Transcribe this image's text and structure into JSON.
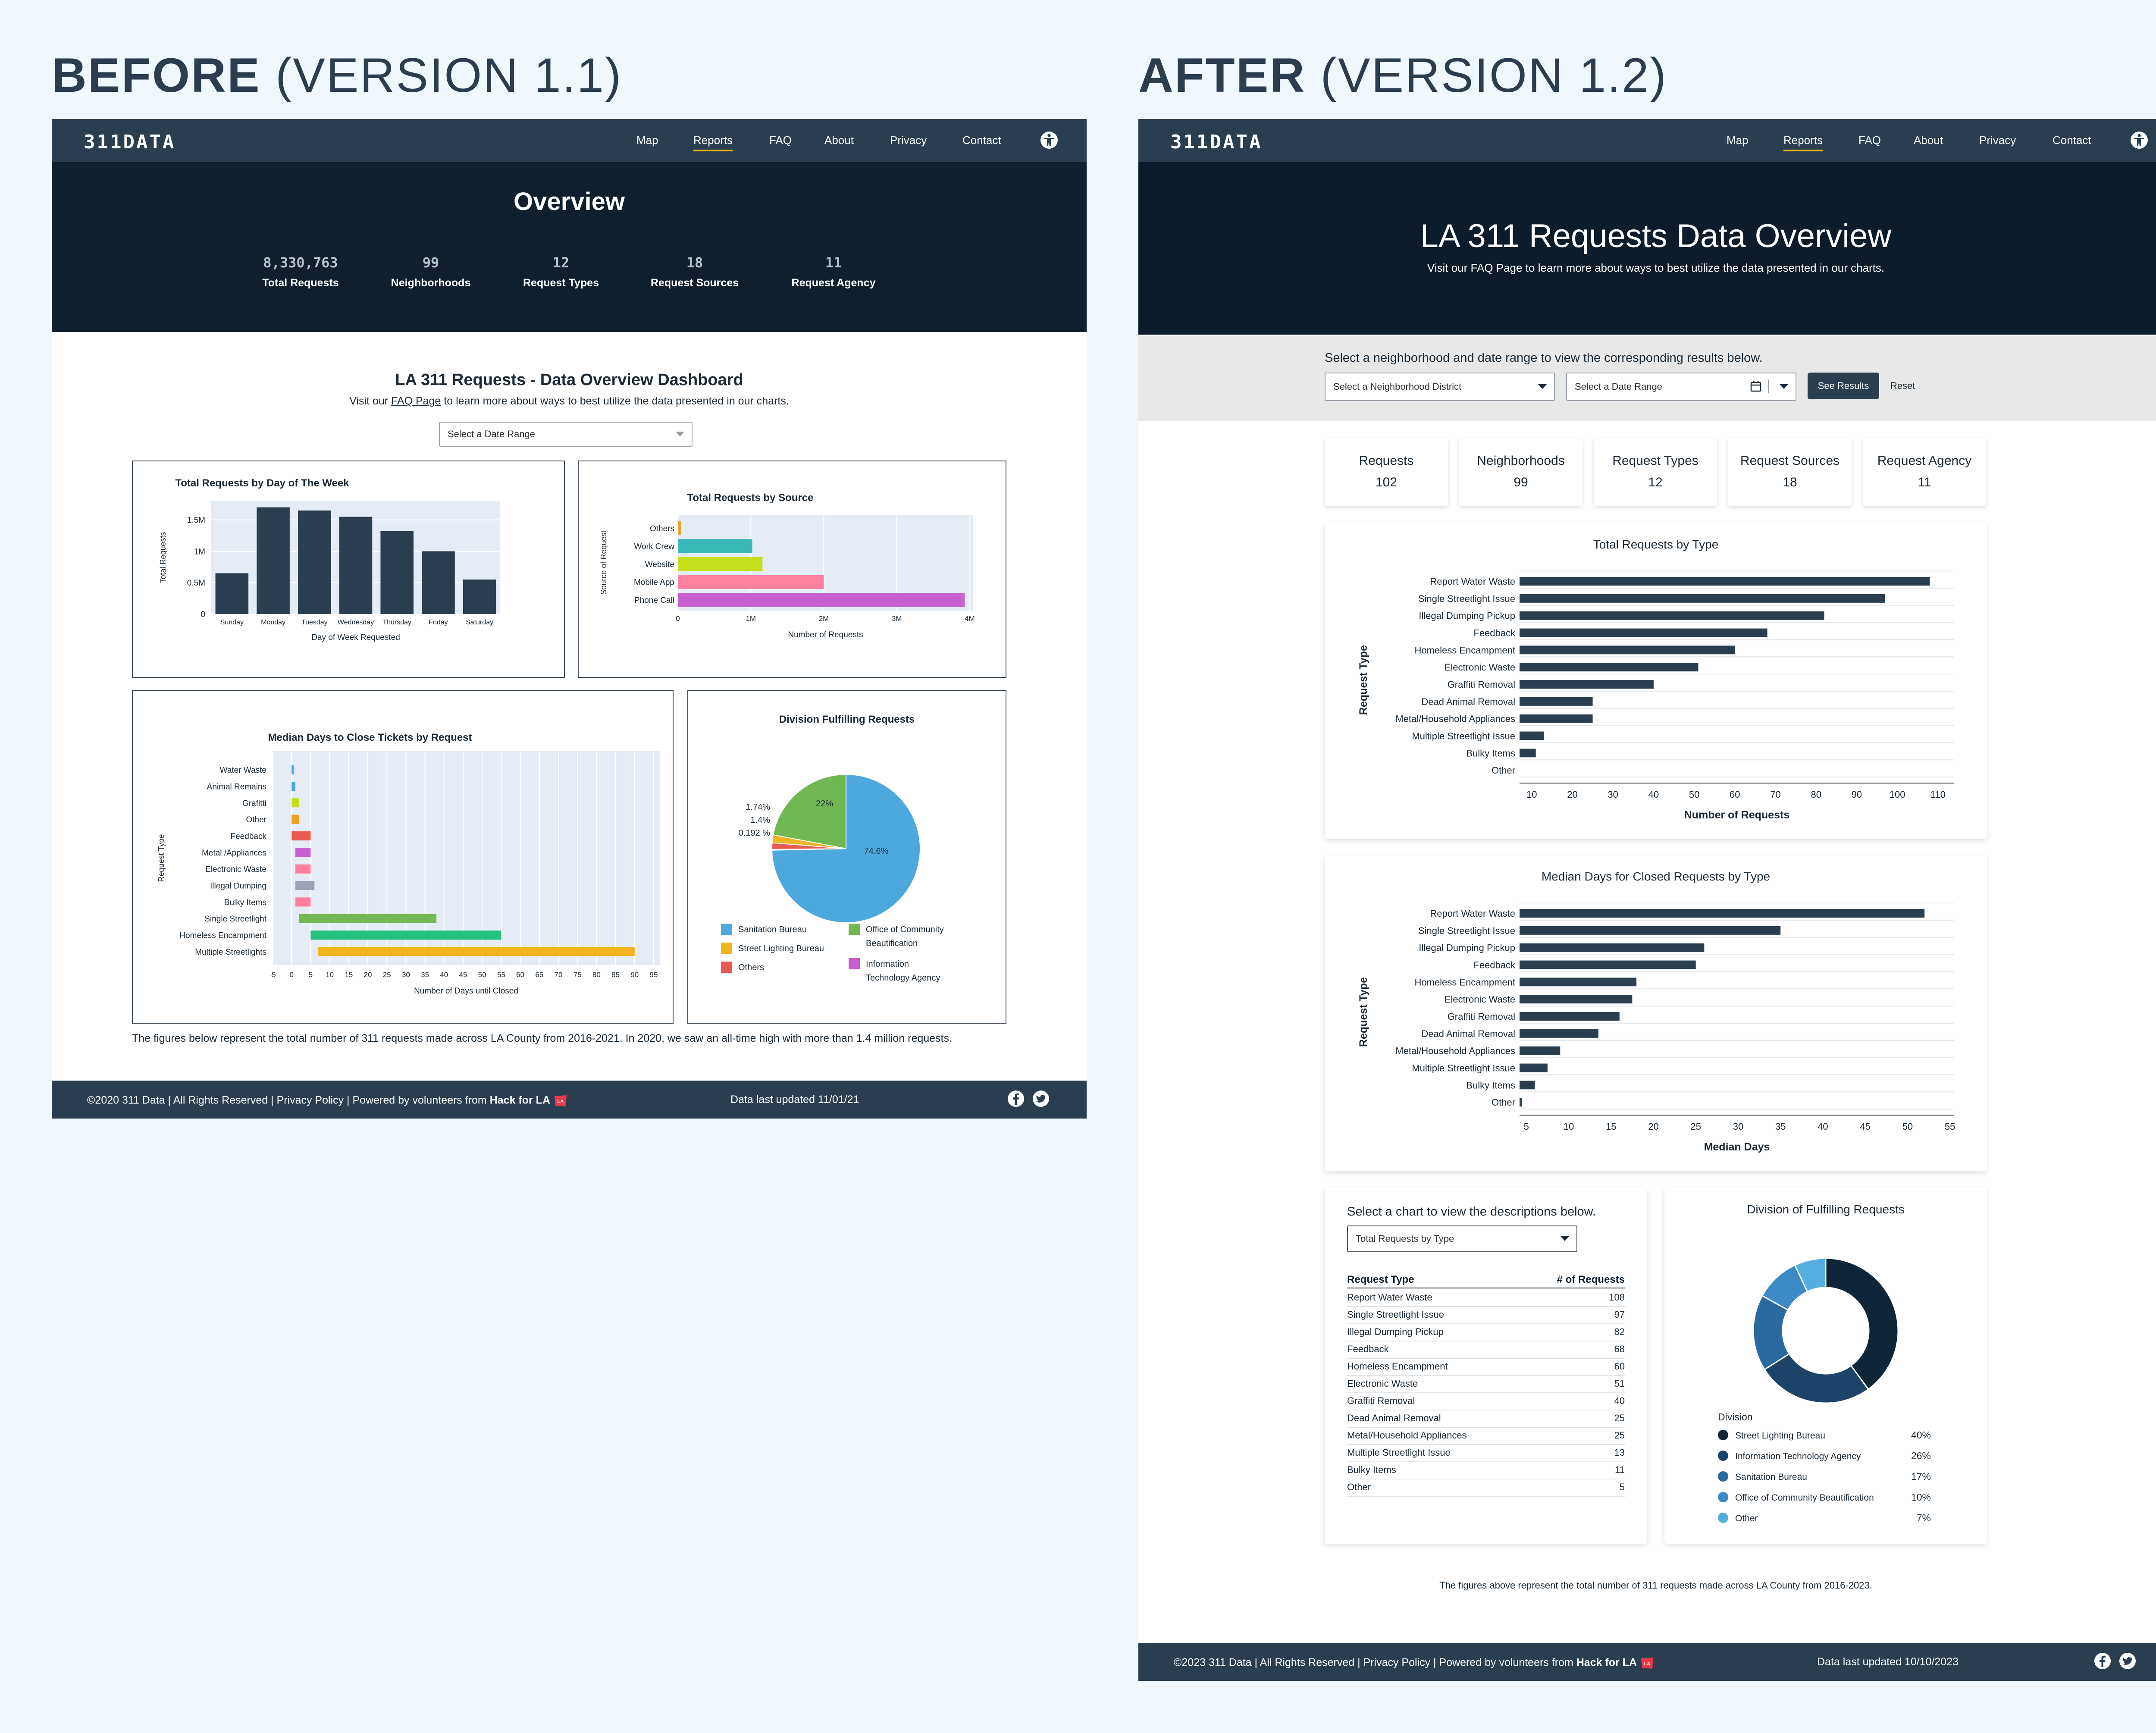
{
  "headings": {
    "before_bold": "BEFORE",
    "before_rest": "(VERSION 1.1)",
    "after_bold": "AFTER",
    "after_rest": "(VERSION 1.2)"
  },
  "nav": {
    "logo": "311DATA",
    "links": [
      "Map",
      "Reports",
      "FAQ",
      "About",
      "Privacy",
      "Contact"
    ],
    "active": "Reports",
    "accent": "#f2b31e"
  },
  "before": {
    "hero_title": "Overview",
    "stats": [
      {
        "value": "8,330,763",
        "label": "Total Requests"
      },
      {
        "value": "99",
        "label": "Neighborhoods"
      },
      {
        "value": "12",
        "label": "Request Types"
      },
      {
        "value": "18",
        "label": "Request Sources"
      },
      {
        "value": "11",
        "label": "Request Agency"
      }
    ],
    "dash_title": "LA 311 Requests - Data Overview Dashboard",
    "sub_pre": "Visit our",
    "sub_link": "FAQ Page",
    "sub_post": "to learn more about ways to best utilize the data presented in our charts.",
    "date_placeholder": "Select a Date Range",
    "note": "The figures below represent the total number of 311 requests made across LA County from 2016-2021. In 2020, we saw an all-time high with more than 1.4 million requests.",
    "footer_left": "©2020 311 Data  |  All Rights Reserved  | Privacy Policy  |  Powered by volunteers from",
    "footer_hack": "Hack for LA",
    "footer_updated": "Data last updated 11/01/21"
  },
  "after": {
    "hero_title": "LA 311 Requests Data Overview",
    "hero_sub": "Visit our FAQ Page to learn more about ways to best utilize the data presented in our charts.",
    "filter_prompt": "Select a neighborhood and date range to view the corresponding results below.",
    "nc_placeholder": "Select a Neighborhood District",
    "date_placeholder": "Select a Date Range",
    "see_results": "See Results",
    "reset": "Reset",
    "kpis": [
      {
        "label": "Requests",
        "value": "102"
      },
      {
        "label": "Neighborhoods",
        "value": "99"
      },
      {
        "label": "Request Types",
        "value": "12"
      },
      {
        "label": "Request Sources",
        "value": "18"
      },
      {
        "label": "Request Agency",
        "value": "11"
      }
    ],
    "desc_prompt": "Select a chart to view the descriptions below.",
    "desc_select": "Total Requests by Type",
    "table_head": [
      "Request Type",
      "# of Requests"
    ],
    "table_rows": [
      [
        "Report Water Waste",
        "108"
      ],
      [
        "Single Streetlight Issue",
        "97"
      ],
      [
        "Illegal Dumping Pickup",
        "82"
      ],
      [
        "Feedback",
        "68"
      ],
      [
        "Homeless Encampment",
        "60"
      ],
      [
        "Electronic Waste",
        "51"
      ],
      [
        "Graffiti Removal",
        "40"
      ],
      [
        "Dead Animal Removal",
        "25"
      ],
      [
        "Metal/Household Appliances",
        "25"
      ],
      [
        "Multiple Streetlight Issue",
        "13"
      ],
      [
        "Bulky Items",
        "11"
      ],
      [
        "Other",
        "5"
      ]
    ],
    "note": "The figures above represent the total number of 311 requests made across LA County from 2016-2023.",
    "footer_left": "©2023 311 Data  |  All Rights Reserved  | Privacy Policy  |  Powered by volunteers from",
    "footer_hack": "Hack for LA",
    "footer_updated": "Data last updated 10/10/2023"
  },
  "chart_data": [
    {
      "id": "day_of_week",
      "type": "bar",
      "title": "Total Requests by Day of The Week",
      "categories": [
        "Sunday",
        "Monday",
        "Tuesday",
        "Wednesday",
        "Thursday",
        "Friday",
        "Saturday"
      ],
      "values": [
        650000,
        1700000,
        1650000,
        1550000,
        1320000,
        1000000,
        550000
      ],
      "yticks": [
        "0",
        "0.5M",
        "1M",
        "1.5M"
      ],
      "ylim": [
        0,
        1800000
      ],
      "xlabel": "Day of Week Requested",
      "ylabel": "Total Requests",
      "color": "#2a3e4f"
    },
    {
      "id": "by_source",
      "type": "bar",
      "orientation": "horizontal",
      "title": "Total Requests by Source",
      "categories": [
        "Others",
        "Work Crew",
        "Website",
        "Mobile App",
        "Phone Call"
      ],
      "values": [
        40000,
        1020000,
        1160000,
        2000000,
        3930000
      ],
      "colors": [
        "#f0a21e",
        "#3bb8b8",
        "#c5df1a",
        "#ff7f9f",
        "#c85fd0"
      ],
      "xticks": [
        "0",
        "1M",
        "2M",
        "3M",
        "4M"
      ],
      "xlim": [
        0,
        4000000
      ],
      "xlabel": "Number of Requests",
      "ylabel": "Source of Request"
    },
    {
      "id": "median_days_v1",
      "type": "bar",
      "orientation": "horizontal",
      "title": "Median Days to Close Tickets by Request",
      "categories": [
        "Water Waste",
        "Animal Remains",
        "Grafitti",
        "Other",
        "Feedback",
        "Metal /Appliances",
        "Electronic Waste",
        "Illegal Dumping",
        "Bulky Items",
        "Single Streetlight",
        "Homeless Encampment",
        "Multiple Streetlights"
      ],
      "ranges": [
        [
          0,
          0.5
        ],
        [
          0,
          1
        ],
        [
          0,
          2
        ],
        [
          0,
          2
        ],
        [
          0,
          5
        ],
        [
          1,
          5
        ],
        [
          1,
          5
        ],
        [
          1,
          6
        ],
        [
          1,
          5
        ],
        [
          2,
          38
        ],
        [
          5,
          55
        ],
        [
          7,
          90
        ]
      ],
      "colors": [
        "#4aa8e0",
        "#4aa8e0",
        "#c5df1a",
        "#f0a21e",
        "#e85a50",
        "#c85fd0",
        "#ff7f9f",
        "#9aa3b8",
        "#ff7f9f",
        "#72b852",
        "#26c07e",
        "#f0b41e"
      ],
      "xticks": [
        "-5",
        "0",
        "5",
        "10",
        "15",
        "20",
        "25",
        "30",
        "35",
        "40",
        "45",
        "50",
        "55",
        "60",
        "65",
        "70",
        "75",
        "80",
        "85",
        "90",
        "95"
      ],
      "xlim": [
        -5,
        95
      ],
      "xlabel": "Number of Days until Closed",
      "ylabel": "Request Type"
    },
    {
      "id": "division_v1",
      "type": "pie",
      "title": "Division Fulfilling Requests",
      "labels": [
        "Sanitation Bureau",
        "Office of Community Beautification",
        "Street Lighting Bureau",
        "Others",
        "Information Technology Agency"
      ],
      "values": [
        74.6,
        22,
        1.74,
        1.4,
        0.192
      ],
      "value_labels": [
        "74.6%",
        "22%",
        "1.74%",
        "1.4%",
        "0.192 %"
      ],
      "colors": [
        "#4da9dd",
        "#72b852",
        "#f0b41e",
        "#e85a50",
        "#c85fd0"
      ]
    },
    {
      "id": "by_type",
      "type": "bar",
      "orientation": "horizontal",
      "title": "Total Requests by Type",
      "categories": [
        "Report Water Waste",
        "Single Streetlight Issue",
        "Illegal Dumping Pickup",
        "Feedback",
        "Homeless Encampment",
        "Electronic Waste",
        "Graffiti Removal",
        "Dead Animal Removal",
        "Metal/Household Appliances",
        "Multiple Streetlight Issue",
        "Bulky Items",
        "Other"
      ],
      "values": [
        108,
        97,
        82,
        68,
        60,
        51,
        40,
        25,
        25,
        13,
        11,
        5
      ],
      "xticks": [
        10,
        20,
        30,
        40,
        50,
        60,
        70,
        80,
        90,
        100,
        110
      ],
      "xlim": [
        7,
        114
      ],
      "xlabel": "Number of Requests",
      "ylabel": "Request Type",
      "color": "#2a3e4f"
    },
    {
      "id": "median_days_v2",
      "type": "bar",
      "orientation": "horizontal",
      "title": "Median Days for Closed Requests by Type",
      "categories": [
        "Report Water Waste",
        "Single Streetlight Issue",
        "Illegal Dumping Pickup",
        "Feedback",
        "Homeless Encampment",
        "Electronic Waste",
        "Graffiti Removal",
        "Dead Animal Removal",
        "Metal/Household Appliances",
        "Multiple Streetlight Issue",
        "Bulky Items",
        "Other"
      ],
      "values": [
        52,
        35,
        26,
        25,
        18,
        17.5,
        16,
        13.5,
        9,
        7.5,
        6,
        4.5
      ],
      "xticks": [
        5,
        10,
        15,
        20,
        25,
        30,
        35,
        40,
        45,
        50,
        55
      ],
      "xlim": [
        4.2,
        55.5
      ],
      "xlabel": "Median Days",
      "ylabel": "Request Type",
      "color": "#2a3e4f"
    },
    {
      "id": "division_v2",
      "type": "pie",
      "donut": true,
      "title": "Division of Fulfilling Requests",
      "legend_title": "Division",
      "labels": [
        "Street Lighting Bureau",
        "Information Technology Agency",
        "Sanitation Bureau",
        "Office of Community Beautification",
        "Other"
      ],
      "values": [
        40,
        26,
        17,
        10,
        7
      ],
      "value_labels": [
        "40%",
        "26%",
        "17%",
        "10%",
        "7%"
      ],
      "colors": [
        "#0f2638",
        "#1b4468",
        "#2a6aa0",
        "#3c8bc6",
        "#56aee0"
      ]
    }
  ]
}
